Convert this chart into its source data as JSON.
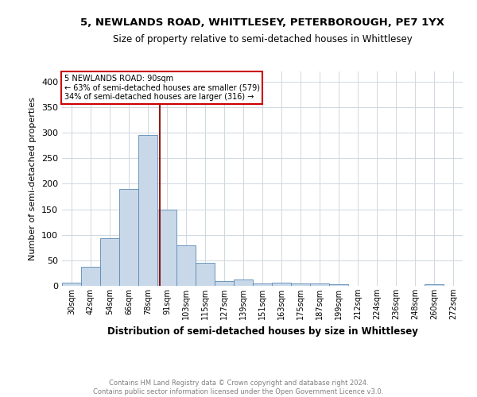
{
  "title": "5, NEWLANDS ROAD, WHITTLESEY, PETERBOROUGH, PE7 1YX",
  "subtitle": "Size of property relative to semi-detached houses in Whittlesey",
  "xlabel": "Distribution of semi-detached houses by size in Whittlesey",
  "ylabel": "Number of semi-detached properties",
  "footnote": "Contains HM Land Registry data © Crown copyright and database right 2024.\nContains public sector information licensed under the Open Government Licence v3.0.",
  "bar_labels": [
    "30sqm",
    "42sqm",
    "54sqm",
    "66sqm",
    "78sqm",
    "91sqm",
    "103sqm",
    "115sqm",
    "127sqm",
    "139sqm",
    "151sqm",
    "163sqm",
    "175sqm",
    "187sqm",
    "199sqm",
    "212sqm",
    "224sqm",
    "236sqm",
    "248sqm",
    "260sqm",
    "272sqm"
  ],
  "bar_values": [
    6,
    38,
    93,
    190,
    295,
    150,
    80,
    45,
    10,
    13,
    5,
    6,
    4,
    4,
    3,
    0,
    0,
    0,
    0,
    3,
    0
  ],
  "bar_color": "#c8d8e8",
  "bar_edge_color": "#5a8ab5",
  "grid_color": "#d0d8e0",
  "annotation_line1": "5 NEWLANDS ROAD: 90sqm",
  "annotation_line2": "← 63% of semi-detached houses are smaller (579)",
  "annotation_line3": "34% of semi-detached houses are larger (316) →",
  "vline_color": "#8b0000",
  "annotation_box_color": "#ffffff",
  "annotation_box_edge": "#cc0000",
  "vline_x_index": 4.62,
  "ylim": [
    0,
    420
  ],
  "yticks": [
    0,
    50,
    100,
    150,
    200,
    250,
    300,
    350,
    400
  ],
  "background_color": "#ffffff"
}
